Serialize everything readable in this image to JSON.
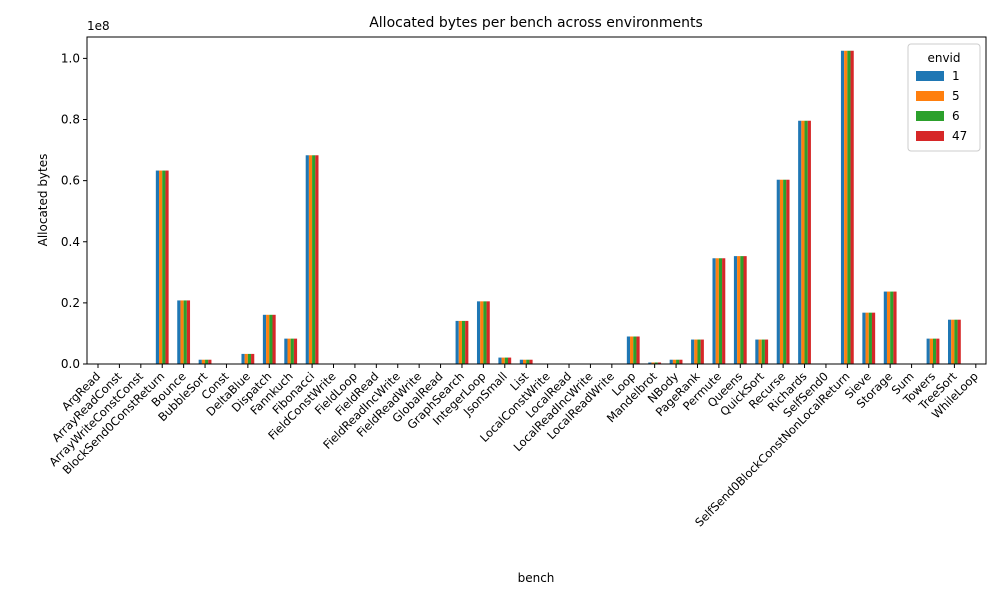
{
  "chart_data": {
    "type": "bar",
    "title": "Allocated bytes per bench across environments",
    "xlabel": "bench",
    "ylabel": "Allocated bytes",
    "y_multiplier_label": "1e8",
    "y_scale": 100000000,
    "ylim": [
      0,
      107000000
    ],
    "yticks": [
      0,
      20000000,
      40000000,
      60000000,
      80000000,
      100000000
    ],
    "ytick_labels": [
      "0.0",
      "0.2",
      "0.4",
      "0.6",
      "0.8",
      "1.0"
    ],
    "grid": false,
    "legend": {
      "title": "envid",
      "position": "top-right"
    },
    "categories": [
      "ArgRead",
      "ArrayReadConst",
      "ArrayWriteConstConst",
      "BlockSend0ConstReturn",
      "Bounce",
      "BubbleSort",
      "Const",
      "DeltaBlue",
      "Dispatch",
      "Fannkuch",
      "Fibonacci",
      "FieldConstWrite",
      "FieldLoop",
      "FieldRead",
      "FieldReadIncWrite",
      "FieldReadWrite",
      "GlobalRead",
      "GraphSearch",
      "IntegerLoop",
      "JsonSmall",
      "List",
      "LocalConstWrite",
      "LocalRead",
      "LocalReadIncWrite",
      "LocalReadWrite",
      "Loop",
      "Mandelbrot",
      "NBody",
      "PageRank",
      "Permute",
      "Queens",
      "QuickSort",
      "Recurse",
      "Richards",
      "SelfSend0",
      "SelfSend0BlockConstNonLocalReturn",
      "Sieve",
      "Storage",
      "Sum",
      "Towers",
      "TreeSort",
      "WhileLoop"
    ],
    "series": [
      {
        "name": "1",
        "color": "#1f77b4",
        "values": [
          0,
          0,
          0,
          63300000,
          20800000,
          1400000,
          0,
          3300000,
          16100000,
          8300000,
          68300000,
          0,
          0,
          0,
          0,
          0,
          0,
          14100000,
          20500000,
          2100000,
          1400000,
          0,
          0,
          0,
          0,
          9000000,
          500000,
          1400000,
          8000000,
          34600000,
          35300000,
          8000000,
          60300000,
          79600000,
          0,
          102500000,
          16800000,
          23700000,
          0,
          8300000,
          14500000,
          0
        ]
      },
      {
        "name": "5",
        "color": "#ff7f0e",
        "values": [
          0,
          0,
          0,
          63300000,
          20800000,
          1400000,
          0,
          3300000,
          16100000,
          8300000,
          68300000,
          0,
          0,
          0,
          0,
          0,
          0,
          14100000,
          20500000,
          2100000,
          1400000,
          0,
          0,
          0,
          0,
          9000000,
          500000,
          1400000,
          8000000,
          34600000,
          35300000,
          8000000,
          60300000,
          79600000,
          0,
          102500000,
          16800000,
          23700000,
          0,
          8300000,
          14500000,
          0
        ]
      },
      {
        "name": "6",
        "color": "#2ca02c",
        "values": [
          0,
          0,
          0,
          63300000,
          20800000,
          1400000,
          0,
          3300000,
          16100000,
          8300000,
          68300000,
          0,
          0,
          0,
          0,
          0,
          0,
          14100000,
          20500000,
          2100000,
          1400000,
          0,
          0,
          0,
          0,
          9000000,
          500000,
          1400000,
          8000000,
          34600000,
          35300000,
          8000000,
          60300000,
          79600000,
          0,
          102500000,
          16800000,
          23700000,
          0,
          8300000,
          14500000,
          0
        ]
      },
      {
        "name": "47",
        "color": "#d62728",
        "values": [
          0,
          0,
          0,
          63300000,
          20800000,
          1400000,
          0,
          3300000,
          16100000,
          8300000,
          68300000,
          0,
          0,
          0,
          0,
          0,
          0,
          14100000,
          20500000,
          2100000,
          1400000,
          0,
          0,
          0,
          0,
          9000000,
          500000,
          1400000,
          8000000,
          34600000,
          35300000,
          8000000,
          60300000,
          79600000,
          0,
          102500000,
          16800000,
          23700000,
          0,
          8300000,
          14500000,
          0
        ]
      }
    ]
  }
}
